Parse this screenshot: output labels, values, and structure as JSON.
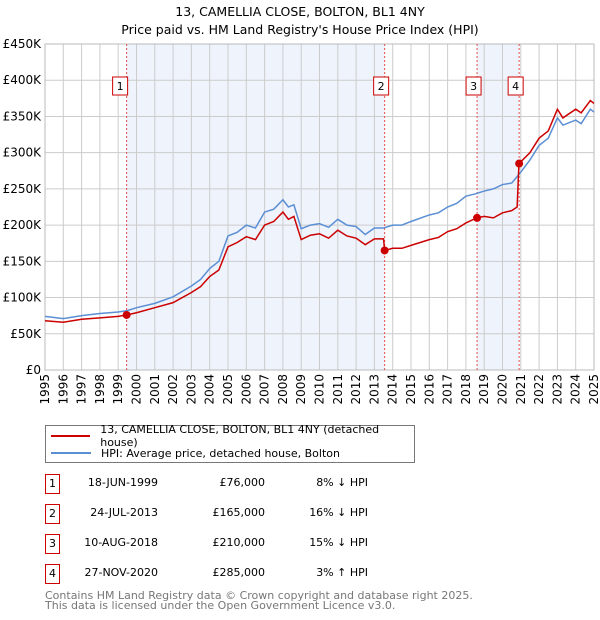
{
  "chart_data": {
    "type": "line",
    "title": "13, CAMELLIA CLOSE, BOLTON, BL1 4NY",
    "subtitle": "Price paid vs. HM Land Registry's House Price Index (HPI)",
    "xlim": [
      1995,
      2025
    ],
    "ylim": [
      0,
      450000
    ],
    "yticks": [
      {
        "v": 0,
        "label": "£0"
      },
      {
        "v": 50000,
        "label": "£50K"
      },
      {
        "v": 100000,
        "label": "£100K"
      },
      {
        "v": 150000,
        "label": "£150K"
      },
      {
        "v": 200000,
        "label": "£200K"
      },
      {
        "v": 250000,
        "label": "£250K"
      },
      {
        "v": 300000,
        "label": "£300K"
      },
      {
        "v": 350000,
        "label": "£350K"
      },
      {
        "v": 400000,
        "label": "£400K"
      },
      {
        "v": 450000,
        "label": "£450K"
      }
    ],
    "xticks": [
      "1995",
      "1996",
      "1997",
      "1998",
      "1999",
      "2000",
      "2001",
      "2002",
      "2003",
      "2004",
      "2005",
      "2006",
      "2007",
      "2008",
      "2009",
      "2010",
      "2011",
      "2012",
      "2013",
      "2014",
      "2015",
      "2016",
      "2017",
      "2018",
      "2019",
      "2020",
      "2021",
      "2022",
      "2023",
      "2024",
      "2025"
    ],
    "grid": true,
    "series": [
      {
        "name": "13, CAMELLIA CLOSE, BOLTON, BL1 4NY (detached house)",
        "color": "#cc0000",
        "x": [
          1995,
          1996,
          1997,
          1998,
          1999,
          1999.46,
          2000,
          2001,
          2002,
          2003,
          2003.5,
          2004,
          2004.5,
          2005,
          2005.5,
          2006,
          2006.5,
          2007,
          2007.5,
          2008,
          2008.3,
          2008.6,
          2009,
          2009.5,
          2010,
          2010.5,
          2011,
          2011.5,
          2012,
          2012.5,
          2013,
          2013.5,
          2013.56,
          2014,
          2014.5,
          2015,
          2016,
          2016.5,
          2017,
          2017.5,
          2018,
          2018.6,
          2019,
          2019.5,
          2020,
          2020.5,
          2020.8,
          2020.9,
          2021.5,
          2022,
          2022.5,
          2023,
          2023.3,
          2024,
          2024.3,
          2024.8,
          2025
        ],
        "y": [
          68000,
          66000,
          70000,
          72000,
          74000,
          76000,
          79000,
          86000,
          93000,
          107000,
          115000,
          129000,
          138000,
          170000,
          176000,
          184000,
          180000,
          200000,
          205000,
          218000,
          208000,
          212000,
          180000,
          186000,
          188000,
          182000,
          193000,
          185000,
          182000,
          173000,
          181000,
          181000,
          165000,
          168000,
          168000,
          172000,
          180000,
          183000,
          191000,
          195000,
          203000,
          210000,
          212000,
          210000,
          217000,
          220000,
          225000,
          285000,
          300000,
          320000,
          330000,
          360000,
          348000,
          360000,
          355000,
          372000,
          368000
        ]
      },
      {
        "name": "HPI: Average price, detached house, Bolton",
        "color": "#5b8fd4",
        "x": [
          1995,
          1996,
          1997,
          1998,
          1999,
          1999.5,
          2000,
          2001,
          2002,
          2003,
          2003.5,
          2004,
          2004.5,
          2005,
          2005.5,
          2006,
          2006.5,
          2007,
          2007.5,
          2008,
          2008.3,
          2008.6,
          2009,
          2009.5,
          2010,
          2010.5,
          2011,
          2011.5,
          2012,
          2012.5,
          2013,
          2013.5,
          2014,
          2014.5,
          2015,
          2016,
          2016.5,
          2017,
          2017.5,
          2018,
          2018.5,
          2019,
          2019.5,
          2020,
          2020.5,
          2020.9,
          2021.5,
          2022,
          2022.5,
          2023,
          2023.3,
          2024,
          2024.3,
          2024.8,
          2025
        ],
        "y": [
          74000,
          71000,
          75000,
          78000,
          80000,
          82000,
          86000,
          92000,
          101000,
          116000,
          125000,
          140000,
          150000,
          185000,
          190000,
          200000,
          196000,
          218000,
          222000,
          235000,
          225000,
          228000,
          195000,
          200000,
          202000,
          197000,
          208000,
          200000,
          198000,
          187000,
          196000,
          196000,
          200000,
          200000,
          205000,
          214000,
          217000,
          225000,
          230000,
          240000,
          243000,
          247000,
          250000,
          256000,
          258000,
          270000,
          290000,
          310000,
          320000,
          348000,
          338000,
          345000,
          340000,
          360000,
          356000
        ]
      }
    ],
    "sales": [
      {
        "n": "1",
        "x": 1999.46,
        "y": 76000,
        "date": "18-JUN-1999",
        "price": "£76,000",
        "hpi": "8% ↓ HPI"
      },
      {
        "n": "2",
        "x": 2013.56,
        "y": 165000,
        "date": "24-JUL-2013",
        "price": "£165,000",
        "hpi": "16% ↓ HPI"
      },
      {
        "n": "3",
        "x": 2018.61,
        "y": 210000,
        "date": "10-AUG-2018",
        "price": "£210,000",
        "hpi": "15% ↓ HPI"
      },
      {
        "n": "4",
        "x": 2020.91,
        "y": 285000,
        "date": "27-NOV-2020",
        "price": "£285,000",
        "hpi": "3% ↑ HPI"
      }
    ],
    "shaded": [
      [
        1999.46,
        2013.56
      ],
      [
        2018.61,
        2020.91
      ]
    ]
  },
  "footer": {
    "line1": "Contains HM Land Registry data © Crown copyright and database right 2025.",
    "line2": "This data is licensed under the Open Government Licence v3.0."
  }
}
